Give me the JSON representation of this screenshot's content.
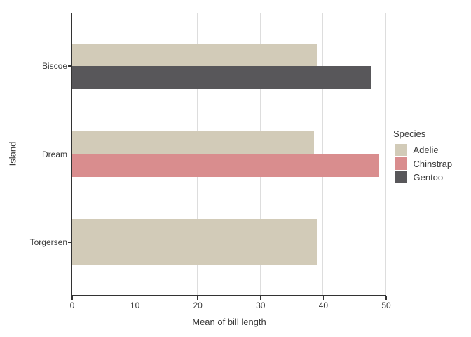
{
  "chart_data": {
    "type": "bar",
    "orientation": "horizontal",
    "title": "",
    "xlabel": "Mean of bill length",
    "ylabel": "Island",
    "xlim": [
      0,
      50
    ],
    "xticks": [
      0,
      10,
      20,
      30,
      40,
      50
    ],
    "categories": [
      "Biscoe",
      "Dream",
      "Torgersen"
    ],
    "grid": {
      "show": true,
      "direction": "vertical",
      "color": "#dddddd"
    },
    "axis_color": "#333333",
    "text_color": "#3a3a3a",
    "legend": {
      "title": "Species",
      "position": "right"
    },
    "series": [
      {
        "name": "Adelie",
        "color": "#d2cbb8"
      },
      {
        "name": "Chinstrap",
        "color": "#d98d8e"
      },
      {
        "name": "Gentoo",
        "color": "#58575a"
      }
    ],
    "groups": [
      {
        "category": "Biscoe",
        "bars": [
          {
            "species": "Adelie",
            "value": 38.98
          },
          {
            "species": "Gentoo",
            "value": 47.5
          }
        ]
      },
      {
        "category": "Dream",
        "bars": [
          {
            "species": "Adelie",
            "value": 38.5
          },
          {
            "species": "Chinstrap",
            "value": 48.83
          }
        ]
      },
      {
        "category": "Torgersen",
        "bars": [
          {
            "species": "Adelie",
            "value": 38.95
          }
        ]
      }
    ]
  }
}
